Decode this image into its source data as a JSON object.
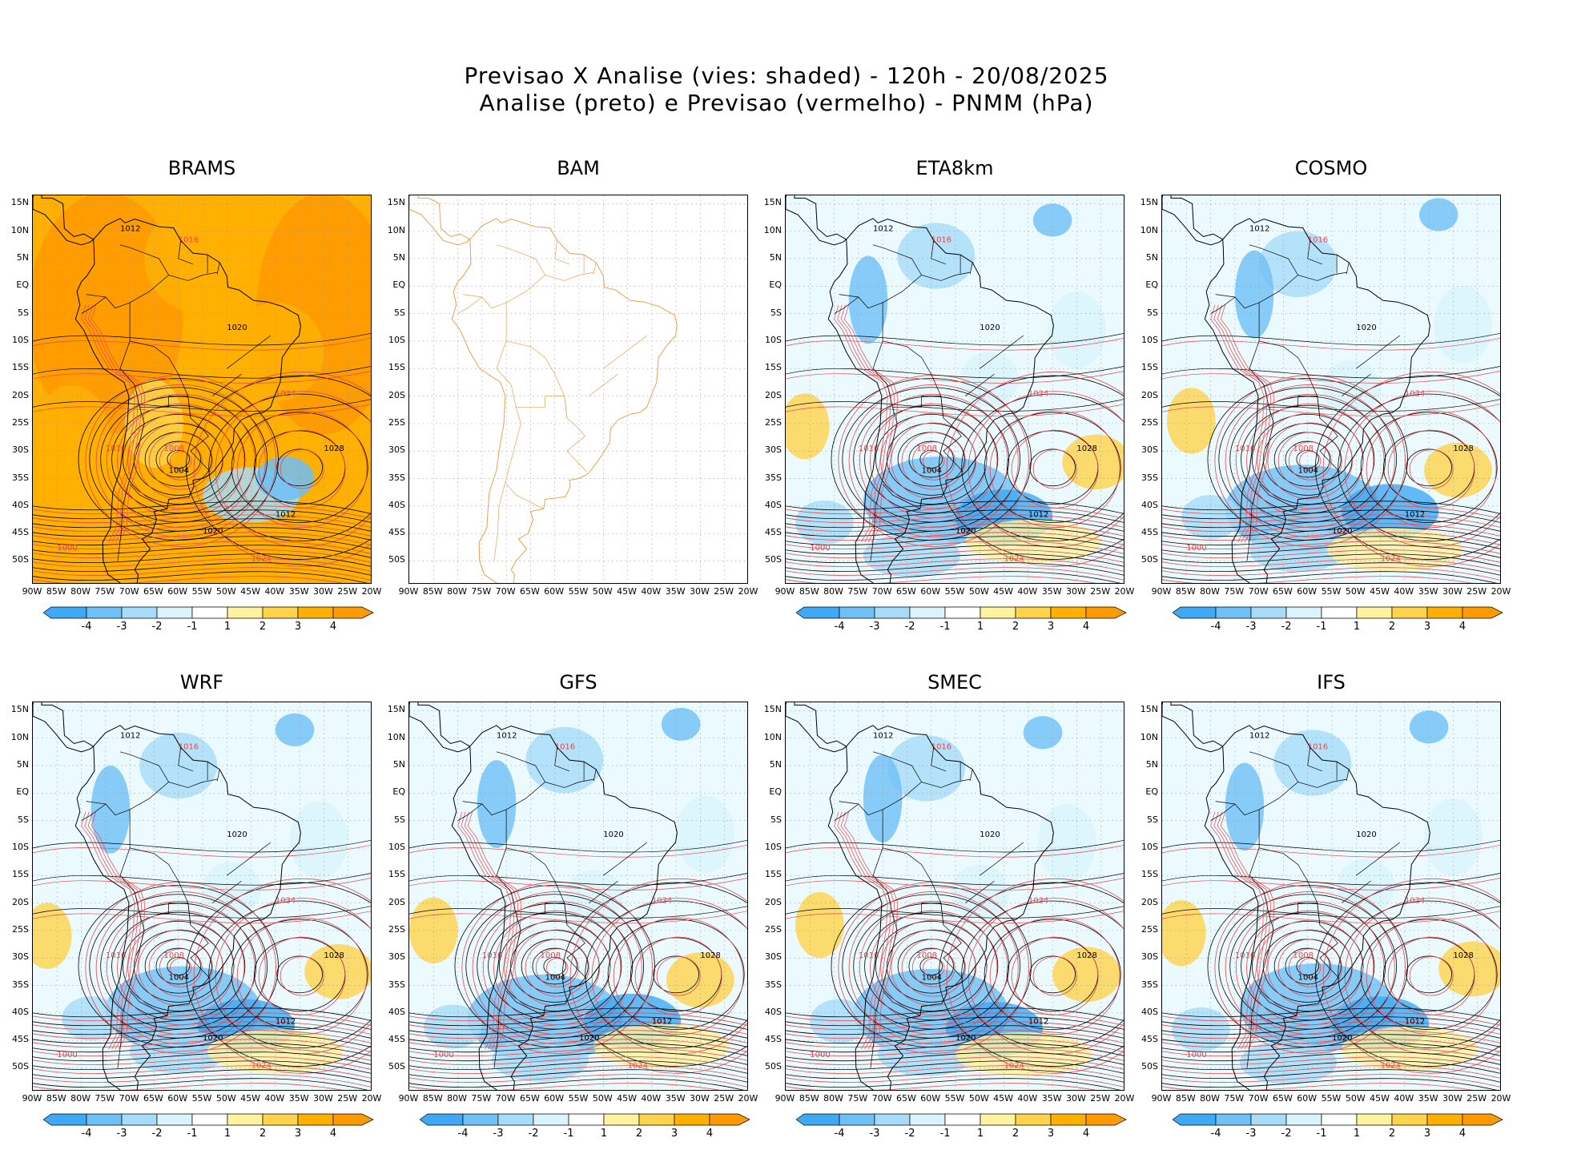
{
  "header": {
    "line1": "Previsao X Analise (vies: shaded) - 120h - 20/08/2025",
    "line2": "Analise (preto) e Previsao (vermelho) - PNMM (hPa)"
  },
  "axes": {
    "lat_labels": [
      "15N",
      "10N",
      "5N",
      "EQ",
      "5S",
      "10S",
      "15S",
      "20S",
      "25S",
      "30S",
      "35S",
      "40S",
      "45S",
      "50S"
    ],
    "lon_labels": [
      "90W",
      "85W",
      "80W",
      "75W",
      "70W",
      "65W",
      "60W",
      "55W",
      "50W",
      "45W",
      "40W",
      "35W",
      "30W",
      "25W",
      "20W"
    ]
  },
  "colorbar": {
    "labels": [
      "-4",
      "-3",
      "-2",
      "-1",
      "1",
      "2",
      "3",
      "4"
    ],
    "colors": [
      "#3fa9f5",
      "#6ec0f7",
      "#a6dcf9",
      "#d9f4fb",
      "#ffffff",
      "#fff3a0",
      "#ffd34a",
      "#ffb000",
      "#ff9a00"
    ]
  },
  "colors": {
    "analysis_isobar": "#000000",
    "forecast_isobar": "#e8474a",
    "coastline_bam": "#e8a050",
    "grid": "#999999"
  },
  "panels": [
    {
      "name": "BRAMS",
      "bias": "warm",
      "show_colorbar": true
    },
    {
      "name": "BAM",
      "bias": "none",
      "show_colorbar": false
    },
    {
      "name": "ETA8km",
      "bias": "mixed-cool",
      "show_colorbar": true
    },
    {
      "name": "COSMO",
      "bias": "mixed-cool",
      "show_colorbar": true
    },
    {
      "name": "WRF",
      "bias": "mixed-cool",
      "show_colorbar": true
    },
    {
      "name": "GFS",
      "bias": "mixed-cool",
      "show_colorbar": true
    },
    {
      "name": "SMEC",
      "bias": "mixed-cool",
      "show_colorbar": true
    },
    {
      "name": "IFS",
      "bias": "mixed-cool",
      "show_colorbar": true
    }
  ],
  "isobar_labels": [
    "1012",
    "1016",
    "1020",
    "1024",
    "1028",
    "1008",
    "1004",
    "1000"
  ]
}
